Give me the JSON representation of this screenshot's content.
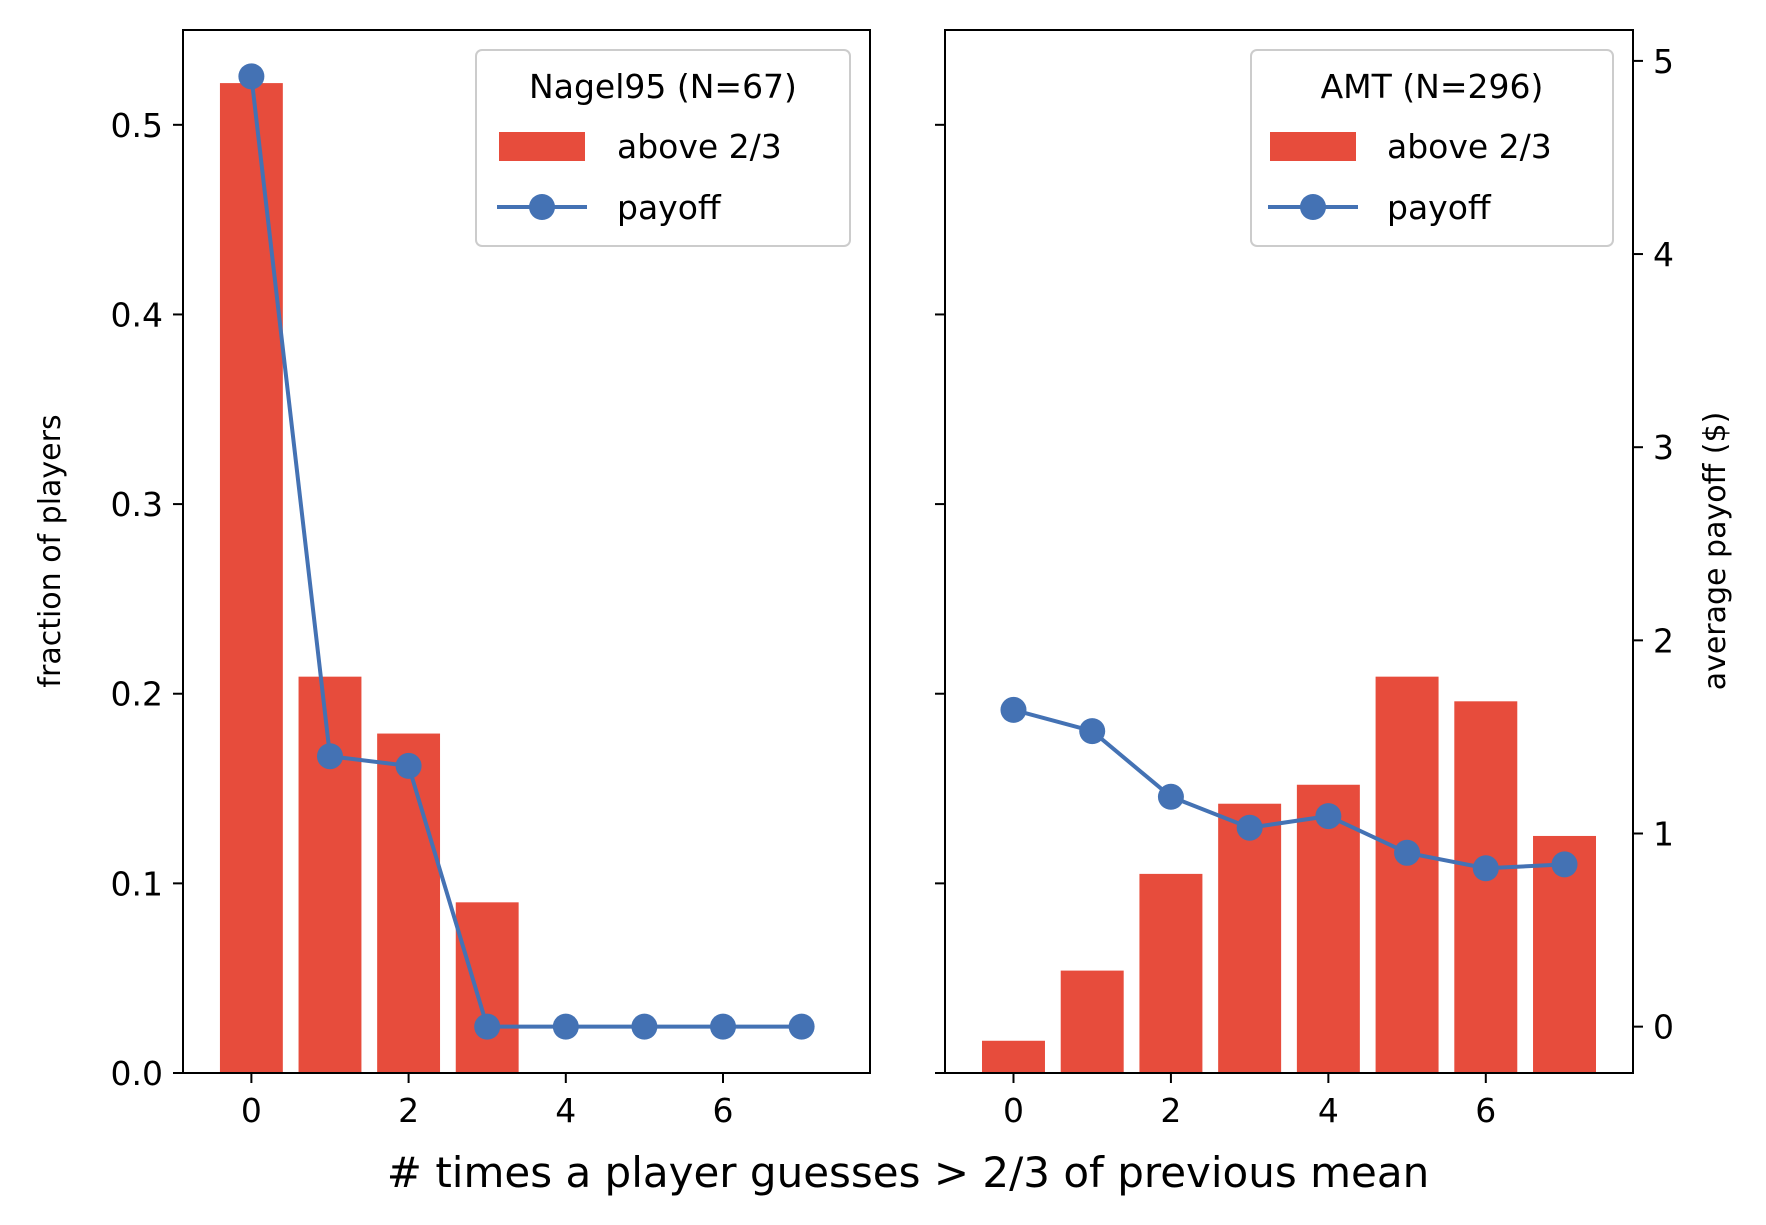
{
  "chart_data": [
    {
      "type": "bar+line",
      "panel": "left",
      "categories": [
        0,
        1,
        2,
        3,
        4,
        5,
        6,
        7
      ],
      "bar_series": {
        "name": "above 2/3",
        "values": [
          0.522,
          0.209,
          0.179,
          0.09,
          0.0,
          0.0,
          0.0,
          0.0
        ]
      },
      "line_series": {
        "name": "payoff",
        "values": [
          4.92,
          1.4,
          1.35,
          0.0,
          0.0,
          0.0,
          0.0,
          0.0
        ]
      },
      "legend_title": "Nagel95 (N=67)",
      "legend_labels": {
        "bar": "above 2/3",
        "line": "payoff"
      },
      "legend_position": "top-right",
      "ylabel": "fraction of players",
      "xlim": [
        -0.87,
        7.87
      ],
      "ylim": [
        0.0,
        0.55
      ],
      "y2lim": [
        -0.24,
        5.16
      ],
      "xticks": [
        0,
        2,
        4,
        6
      ],
      "xtick_labels": [
        "0",
        "2",
        "4",
        "6"
      ],
      "yticks": [
        0.0,
        0.1,
        0.2,
        0.3,
        0.4,
        0.5
      ],
      "ytick_labels": [
        "0.0",
        "0.1",
        "0.2",
        "0.3",
        "0.4",
        "0.5"
      ]
    },
    {
      "type": "bar+line",
      "panel": "right",
      "categories": [
        0,
        1,
        2,
        3,
        4,
        5,
        6,
        7
      ],
      "bar_series": {
        "name": "above 2/3",
        "values": [
          0.017,
          0.054,
          0.105,
          0.142,
          0.152,
          0.209,
          0.196,
          0.125
        ]
      },
      "line_series": {
        "name": "payoff",
        "values": [
          1.64,
          1.53,
          1.19,
          1.03,
          1.09,
          0.9,
          0.82,
          0.84
        ]
      },
      "legend_title": "AMT (N=296)",
      "legend_labels": {
        "bar": "above 2/3",
        "line": "payoff"
      },
      "legend_position": "top-right",
      "y2label": "average payoff ($)",
      "xlim": [
        -0.87,
        7.87
      ],
      "ylim": [
        0.0,
        0.55
      ],
      "y2lim": [
        -0.24,
        5.16
      ],
      "xticks": [
        0,
        2,
        4,
        6
      ],
      "xtick_labels": [
        "0",
        "2",
        "4",
        "6"
      ],
      "y2ticks": [
        0,
        1,
        2,
        3,
        4,
        5
      ],
      "y2tick_labels": [
        "0",
        "1",
        "2",
        "3",
        "4",
        "5"
      ]
    }
  ],
  "shared_xlabel": "# times a player guesses > 2/3 of previous mean",
  "colors": {
    "bar": "#e74c3c",
    "line": "#4472b4",
    "axis": "#000000",
    "legend_border": "#cccccc"
  }
}
